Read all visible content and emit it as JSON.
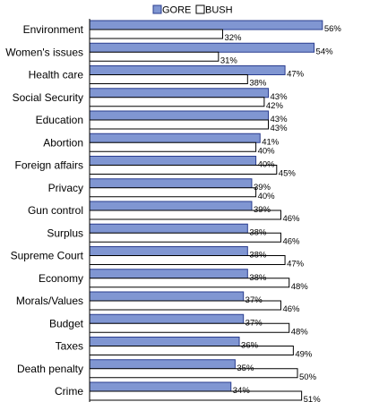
{
  "colors": {
    "gore_fill": "#8096d2",
    "gore_stroke": "#2a3d8f",
    "bush_fill": "#ffffff",
    "bush_stroke": "#000000",
    "background": "#ffffff",
    "axis": "#000000"
  },
  "chart_data": {
    "type": "bar",
    "orientation": "horizontal",
    "title": "",
    "xlabel": "",
    "ylabel": "",
    "xlim": [
      0,
      60
    ],
    "grid": false,
    "legend": {
      "placement": "top-center",
      "entries": [
        "GORE",
        "BUSH"
      ]
    },
    "value_suffix": "%",
    "categories": [
      "Environment",
      "Women's issues",
      "Health care",
      "Social Security",
      "Education",
      "Abortion",
      "Foreign affairs",
      "Privacy",
      "Gun control",
      "Surplus",
      "Supreme Court",
      "Economy",
      "Morals/Values",
      "Budget",
      "Taxes",
      "Death penalty",
      "Crime"
    ],
    "series": [
      {
        "name": "GORE",
        "values": [
          56,
          54,
          47,
          43,
          43,
          41,
          40,
          39,
          39,
          38,
          38,
          38,
          37,
          37,
          36,
          35,
          34
        ]
      },
      {
        "name": "BUSH",
        "values": [
          32,
          31,
          38,
          42,
          43,
          40,
          45,
          40,
          46,
          46,
          47,
          48,
          46,
          48,
          49,
          50,
          51
        ]
      }
    ]
  }
}
